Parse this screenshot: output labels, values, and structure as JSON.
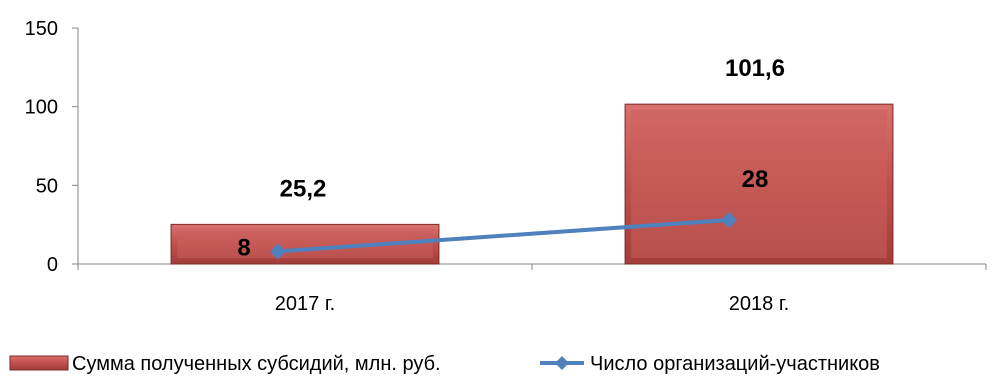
{
  "chart_data": {
    "type": "bar",
    "categories": [
      "2017 г.",
      "2018 г."
    ],
    "series": [
      {
        "name": "Сумма полученных субсидий, млн. руб.",
        "type": "bar",
        "values": [
          25.2,
          101.6
        ],
        "labels": [
          "25,2",
          "101,6"
        ],
        "color": "#c0504d"
      },
      {
        "name": "Число организаций-участников",
        "type": "line",
        "values": [
          8,
          28
        ],
        "labels": [
          "8",
          "28"
        ],
        "color": "#4f81bd"
      }
    ],
    "yticks": [
      "0",
      "50",
      "100",
      "150"
    ],
    "ylim": [
      0,
      150
    ],
    "grid": false,
    "legend": "bottom"
  }
}
